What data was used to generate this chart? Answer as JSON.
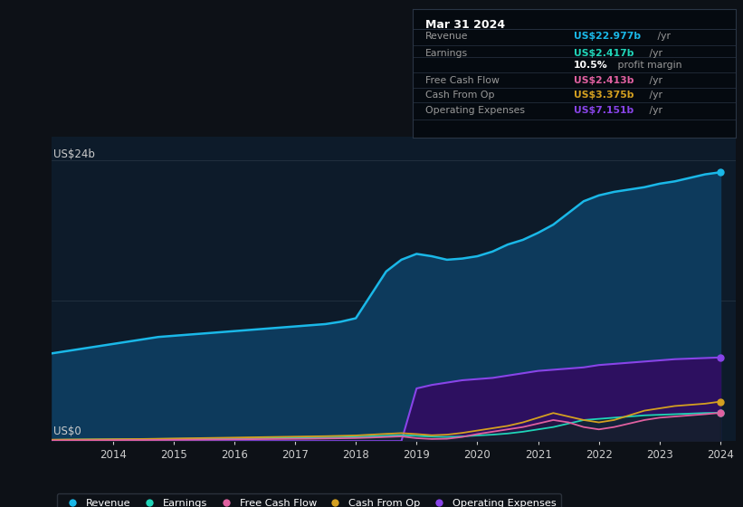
{
  "background_color": "#0d1117",
  "plot_bg_color": "#0d1b2a",
  "years": [
    2013.0,
    2013.25,
    2013.5,
    2013.75,
    2014.0,
    2014.25,
    2014.5,
    2014.75,
    2015.0,
    2015.25,
    2015.5,
    2015.75,
    2016.0,
    2016.25,
    2016.5,
    2016.75,
    2017.0,
    2017.25,
    2017.5,
    2017.75,
    2018.0,
    2018.25,
    2018.5,
    2018.75,
    2019.0,
    2019.25,
    2019.5,
    2019.75,
    2020.0,
    2020.25,
    2020.5,
    2020.75,
    2021.0,
    2021.25,
    2021.5,
    2021.75,
    2022.0,
    2022.25,
    2022.5,
    2022.75,
    2023.0,
    2023.25,
    2023.5,
    2023.75,
    2024.0
  ],
  "revenue": [
    7.5,
    7.7,
    7.9,
    8.1,
    8.3,
    8.5,
    8.7,
    8.9,
    9.0,
    9.1,
    9.2,
    9.3,
    9.4,
    9.5,
    9.6,
    9.7,
    9.8,
    9.9,
    10.0,
    10.2,
    10.5,
    12.5,
    14.5,
    15.5,
    16.0,
    15.8,
    15.5,
    15.6,
    15.8,
    16.2,
    16.8,
    17.2,
    17.8,
    18.5,
    19.5,
    20.5,
    21.0,
    21.3,
    21.5,
    21.7,
    22.0,
    22.2,
    22.5,
    22.8,
    22.977
  ],
  "earnings": [
    0.1,
    0.12,
    0.13,
    0.14,
    0.15,
    0.16,
    0.17,
    0.18,
    0.19,
    0.2,
    0.21,
    0.22,
    0.23,
    0.24,
    0.25,
    0.26,
    0.27,
    0.28,
    0.3,
    0.32,
    0.35,
    0.4,
    0.45,
    0.5,
    0.45,
    0.38,
    0.35,
    0.4,
    0.48,
    0.55,
    0.65,
    0.8,
    1.0,
    1.2,
    1.5,
    1.8,
    1.9,
    2.0,
    2.1,
    2.2,
    2.25,
    2.3,
    2.35,
    2.4,
    2.417
  ],
  "free_cash_flow": [
    0.05,
    0.06,
    0.07,
    0.07,
    0.08,
    0.09,
    0.09,
    0.1,
    0.11,
    0.12,
    0.13,
    0.14,
    0.15,
    0.16,
    0.17,
    0.18,
    0.19,
    0.2,
    0.22,
    0.24,
    0.26,
    0.3,
    0.35,
    0.4,
    0.25,
    0.18,
    0.2,
    0.35,
    0.6,
    0.8,
    1.0,
    1.2,
    1.5,
    1.8,
    1.6,
    1.2,
    1.0,
    1.2,
    1.5,
    1.8,
    2.0,
    2.1,
    2.2,
    2.3,
    2.413
  ],
  "cash_from_op": [
    0.12,
    0.13,
    0.14,
    0.15,
    0.16,
    0.17,
    0.18,
    0.2,
    0.22,
    0.24,
    0.26,
    0.28,
    0.3,
    0.32,
    0.34,
    0.36,
    0.38,
    0.4,
    0.42,
    0.45,
    0.48,
    0.55,
    0.62,
    0.68,
    0.6,
    0.5,
    0.55,
    0.7,
    0.9,
    1.1,
    1.3,
    1.6,
    2.0,
    2.4,
    2.1,
    1.8,
    1.6,
    1.8,
    2.2,
    2.6,
    2.8,
    3.0,
    3.1,
    3.2,
    3.375
  ],
  "operating_expenses": [
    0.0,
    0.0,
    0.0,
    0.0,
    0.0,
    0.0,
    0.0,
    0.0,
    0.0,
    0.0,
    0.0,
    0.0,
    0.0,
    0.0,
    0.0,
    0.0,
    0.0,
    0.0,
    0.0,
    0.0,
    0.0,
    0.0,
    0.0,
    0.0,
    4.5,
    4.8,
    5.0,
    5.2,
    5.3,
    5.4,
    5.6,
    5.8,
    6.0,
    6.1,
    6.2,
    6.3,
    6.5,
    6.6,
    6.7,
    6.8,
    6.9,
    7.0,
    7.05,
    7.1,
    7.151
  ],
  "colors": {
    "revenue": "#1ab8e8",
    "earnings": "#20d4b8",
    "free_cash_flow": "#e060a0",
    "cash_from_op": "#d4a020",
    "operating_expenses": "#8844e8",
    "revenue_fill": "#0d3a5c",
    "op_exp_fill": "#2d1060"
  },
  "ytick_24b": "US$24b",
  "y0_label": "US$0",
  "ylim": [
    0,
    26
  ],
  "xlim": [
    2013.0,
    2024.25
  ],
  "xticks": [
    2014,
    2015,
    2016,
    2017,
    2018,
    2019,
    2020,
    2021,
    2022,
    2023,
    2024
  ],
  "gridline_y": [
    12,
    24
  ],
  "info_box": {
    "title": "Mar 31 2024",
    "rows": [
      {
        "label": "Revenue",
        "value": "US$22.977b",
        "unit": " /yr",
        "color": "#1ab8e8"
      },
      {
        "label": "Earnings",
        "value": "US$2.417b",
        "unit": " /yr",
        "color": "#20d4b8"
      },
      {
        "label": "",
        "value": "10.5%",
        "unit": " profit margin",
        "color": "#ffffff"
      },
      {
        "label": "Free Cash Flow",
        "value": "US$2.413b",
        "unit": " /yr",
        "color": "#e060a0"
      },
      {
        "label": "Cash From Op",
        "value": "US$3.375b",
        "unit": " /yr",
        "color": "#d4a020"
      },
      {
        "label": "Operating Expenses",
        "value": "US$7.151b",
        "unit": " /yr",
        "color": "#8844e8"
      }
    ]
  },
  "legend": [
    {
      "label": "Revenue",
      "color": "#1ab8e8"
    },
    {
      "label": "Earnings",
      "color": "#20d4b8"
    },
    {
      "label": "Free Cash Flow",
      "color": "#e060a0"
    },
    {
      "label": "Cash From Op",
      "color": "#d4a020"
    },
    {
      "label": "Operating Expenses",
      "color": "#8844e8"
    }
  ]
}
